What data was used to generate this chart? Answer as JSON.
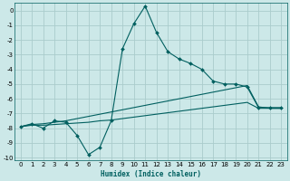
{
  "xlabel": "Humidex (Indice chaleur)",
  "background_color": "#cce8e8",
  "grid_color": "#aacccc",
  "line_color": "#005f5f",
  "xlim": [
    -0.5,
    23.5
  ],
  "ylim": [
    -10.2,
    0.5
  ],
  "yticks": [
    0,
    -1,
    -2,
    -3,
    -4,
    -5,
    -6,
    -7,
    -8,
    -9,
    -10
  ],
  "xticks": [
    0,
    1,
    2,
    3,
    4,
    5,
    6,
    7,
    8,
    9,
    10,
    11,
    12,
    13,
    14,
    15,
    16,
    17,
    18,
    19,
    20,
    21,
    22,
    23
  ],
  "series1_x": [
    0,
    1,
    2,
    3,
    4,
    5,
    6,
    7,
    8,
    9,
    10,
    11,
    12,
    13,
    14,
    15,
    16,
    17,
    18,
    19,
    20,
    21,
    22,
    23
  ],
  "series1_y": [
    -7.9,
    -7.7,
    -8.0,
    -7.5,
    -7.6,
    -8.5,
    -9.8,
    -9.3,
    -7.5,
    -2.6,
    -0.9,
    0.3,
    -1.5,
    -2.8,
    -3.3,
    -3.6,
    -4.0,
    -4.8,
    -5.0,
    -5.0,
    -5.2,
    -6.6,
    -6.6,
    -6.6
  ],
  "series2_x": [
    0,
    1,
    2,
    3,
    4,
    5,
    6,
    7,
    8,
    9,
    10,
    11,
    12,
    13,
    14,
    15,
    16,
    17,
    18,
    19,
    20,
    21,
    22,
    23
  ],
  "series2_y": [
    -7.9,
    -7.75,
    -7.7,
    -7.6,
    -7.5,
    -7.35,
    -7.2,
    -7.05,
    -6.9,
    -6.75,
    -6.6,
    -6.45,
    -6.3,
    -6.15,
    -6.0,
    -5.85,
    -5.7,
    -5.55,
    -5.4,
    -5.25,
    -5.1,
    -6.55,
    -6.65,
    -6.65
  ],
  "series3_x": [
    0,
    1,
    2,
    3,
    4,
    5,
    6,
    7,
    8,
    9,
    10,
    11,
    12,
    13,
    14,
    15,
    16,
    17,
    18,
    19,
    20,
    21,
    22,
    23
  ],
  "series3_y": [
    -7.9,
    -7.8,
    -7.8,
    -7.75,
    -7.7,
    -7.65,
    -7.6,
    -7.5,
    -7.45,
    -7.35,
    -7.25,
    -7.15,
    -7.05,
    -6.95,
    -6.85,
    -6.75,
    -6.65,
    -6.55,
    -6.45,
    -6.35,
    -6.25,
    -6.65,
    -6.65,
    -6.65
  ]
}
